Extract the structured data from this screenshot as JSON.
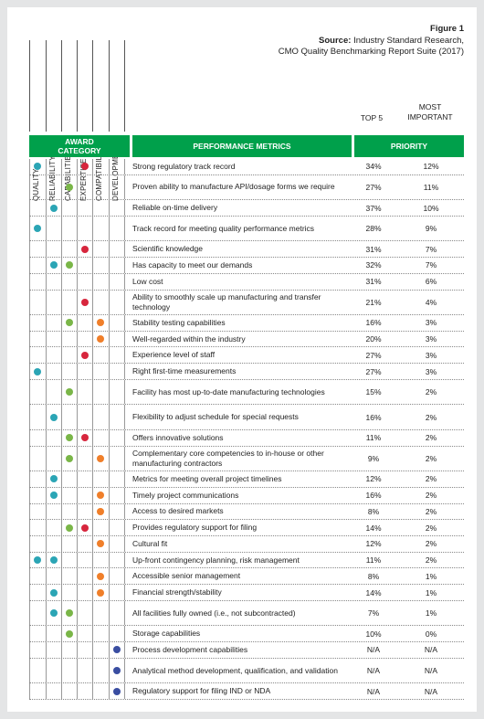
{
  "figure": {
    "label": "Figure 1",
    "source_label": "Source:",
    "source_text": "Industry Standard Research,",
    "source_line2": "CMO Quality Benchmarking Report Suite (2017)"
  },
  "categories": [
    "QUALITY",
    "RELIABILITY",
    "CAPABILITIES",
    "EXPERTISE",
    "COMPATIBILITY",
    "DEVELOPMENT"
  ],
  "category_colors": {
    "QUALITY": "#2ba5b5",
    "RELIABILITY": "#2ba5b5",
    "CAPABILITIES": "#7ab648",
    "EXPERTISE": "#d7263d",
    "COMPATIBILITY": "#f07f2a",
    "DEVELOPMENT": "#3a4ea1"
  },
  "headers": {
    "top5": "TOP 5",
    "most_important_line1": "MOST",
    "most_important_line2": "IMPORTANT",
    "award_line1": "AWARD",
    "award_line2": "CATEGORY",
    "metrics": "PERFORMANCE METRICS",
    "priority": "PRIORITY"
  },
  "rows": [
    {
      "metric": "Strong regulatory track record",
      "cats": [
        "QUALITY",
        "EXPERTISE"
      ],
      "top5": "34%",
      "most": "12%"
    },
    {
      "metric": "Proven ability to manufacture API/dosage forms we require",
      "cats": [
        "CAPABILITIES"
      ],
      "top5": "27%",
      "most": "11%"
    },
    {
      "metric": "Reliable on-time delivery",
      "cats": [
        "RELIABILITY"
      ],
      "top5": "37%",
      "most": "10%"
    },
    {
      "metric": "Track record for meeting quality performance metrics",
      "cats": [
        "QUALITY"
      ],
      "top5": "28%",
      "most": "9%"
    },
    {
      "metric": "Scientific knowledge",
      "cats": [
        "EXPERTISE"
      ],
      "top5": "31%",
      "most": "7%"
    },
    {
      "metric": "Has capacity to meet our demands",
      "cats": [
        "RELIABILITY",
        "CAPABILITIES"
      ],
      "top5": "32%",
      "most": "7%"
    },
    {
      "metric": "Low cost",
      "cats": [],
      "top5": "31%",
      "most": "6%"
    },
    {
      "metric": "Ability to smoothly scale up manufacturing and transfer technology",
      "cats": [
        "EXPERTISE"
      ],
      "top5": "21%",
      "most": "4%"
    },
    {
      "metric": "Stability testing capabilities",
      "cats": [
        "CAPABILITIES",
        "COMPATIBILITY"
      ],
      "top5": "16%",
      "most": "3%"
    },
    {
      "metric": "Well-regarded within the industry",
      "cats": [
        "COMPATIBILITY"
      ],
      "top5": "20%",
      "most": "3%"
    },
    {
      "metric": "Experience level of staff",
      "cats": [
        "EXPERTISE"
      ],
      "top5": "27%",
      "most": "3%"
    },
    {
      "metric": "Right first-time measurements",
      "cats": [
        "QUALITY"
      ],
      "top5": "27%",
      "most": "3%"
    },
    {
      "metric": "Facility has most up-to-date manufacturing technologies",
      "cats": [
        "CAPABILITIES"
      ],
      "top5": "15%",
      "most": "2%"
    },
    {
      "metric": "Flexibility to adjust schedule for special requests",
      "cats": [
        "RELIABILITY"
      ],
      "top5": "16%",
      "most": "2%"
    },
    {
      "metric": "Offers innovative solutions",
      "cats": [
        "CAPABILITIES",
        "EXPERTISE"
      ],
      "top5": "11%",
      "most": "2%"
    },
    {
      "metric": "Complementary core competencies to in-house or other manufacturing contractors",
      "cats": [
        "CAPABILITIES",
        "COMPATIBILITY"
      ],
      "top5": "9%",
      "most": "2%"
    },
    {
      "metric": "Metrics for meeting overall project timelines",
      "cats": [
        "RELIABILITY"
      ],
      "top5": "12%",
      "most": "2%"
    },
    {
      "metric": "Timely project communications",
      "cats": [
        "RELIABILITY",
        "COMPATIBILITY"
      ],
      "top5": "16%",
      "most": "2%"
    },
    {
      "metric": "Access to desired markets",
      "cats": [
        "COMPATIBILITY"
      ],
      "top5": "8%",
      "most": "2%"
    },
    {
      "metric": "Provides regulatory support for filing",
      "cats": [
        "CAPABILITIES",
        "EXPERTISE"
      ],
      "top5": "14%",
      "most": "2%"
    },
    {
      "metric": "Cultural fit",
      "cats": [
        "COMPATIBILITY"
      ],
      "top5": "12%",
      "most": "2%"
    },
    {
      "metric": "Up-front contingency planning, risk management",
      "cats": [
        "QUALITY",
        "RELIABILITY"
      ],
      "top5": "11%",
      "most": "2%"
    },
    {
      "metric": "Accessible senior management",
      "cats": [
        "COMPATIBILITY"
      ],
      "top5": "8%",
      "most": "1%"
    },
    {
      "metric": "Financial strength/stability",
      "cats": [
        "RELIABILITY",
        "COMPATIBILITY"
      ],
      "top5": "14%",
      "most": "1%"
    },
    {
      "metric": "All facilities fully owned (i.e., not subcontracted)",
      "cats": [
        "RELIABILITY",
        "CAPABILITIES"
      ],
      "top5": "7%",
      "most": "1%"
    },
    {
      "metric": "Storage capabilities",
      "cats": [
        "CAPABILITIES"
      ],
      "top5": "10%",
      "most": "0%"
    },
    {
      "metric": "Process development capabilities",
      "cats": [
        "DEVELOPMENT"
      ],
      "top5": "N/A",
      "most": "N/A"
    },
    {
      "metric": "Analytical method development, qualification, and validation",
      "cats": [
        "DEVELOPMENT"
      ],
      "top5": "N/A",
      "most": "N/A"
    },
    {
      "metric": "Regulatory support for filing IND or NDA",
      "cats": [
        "DEVELOPMENT"
      ],
      "top5": "N/A",
      "most": "N/A"
    }
  ]
}
